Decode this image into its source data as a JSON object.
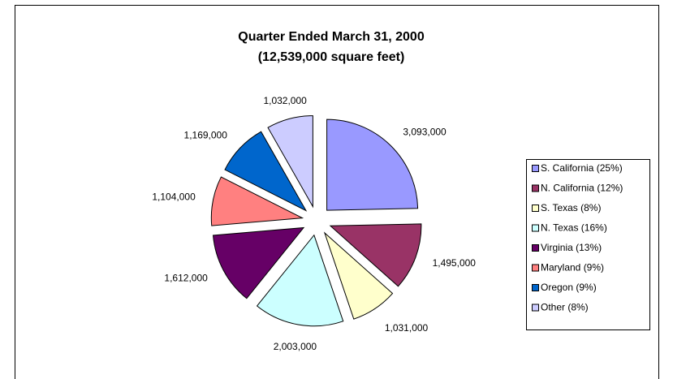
{
  "chart_data": {
    "type": "pie",
    "title": "Quarter Ended March 31, 2000",
    "subtitle": "(12,539,000 square feet)",
    "categories": [
      "S. California (25%)",
      "N. California (12%)",
      "S. Texas (8%)",
      "N. Texas (16%)",
      "Virginia (13%)",
      "Maryland (9%)",
      "Oregon (9%)",
      "Other (8%)"
    ],
    "values": [
      3093000,
      1495000,
      1031000,
      2003000,
      1612000,
      1104000,
      1169000,
      1032000
    ],
    "value_labels": [
      "3,093,000",
      "1,495,000",
      "1,031,000",
      "2,003,000",
      "1,612,000",
      "1,104,000",
      "1,169,000",
      "1,032,000"
    ],
    "colors": [
      "#9999ff",
      "#993366",
      "#ffffcc",
      "#ccffff",
      "#660066",
      "#ff8080",
      "#0066cc",
      "#ccccff"
    ],
    "legend": "right"
  }
}
